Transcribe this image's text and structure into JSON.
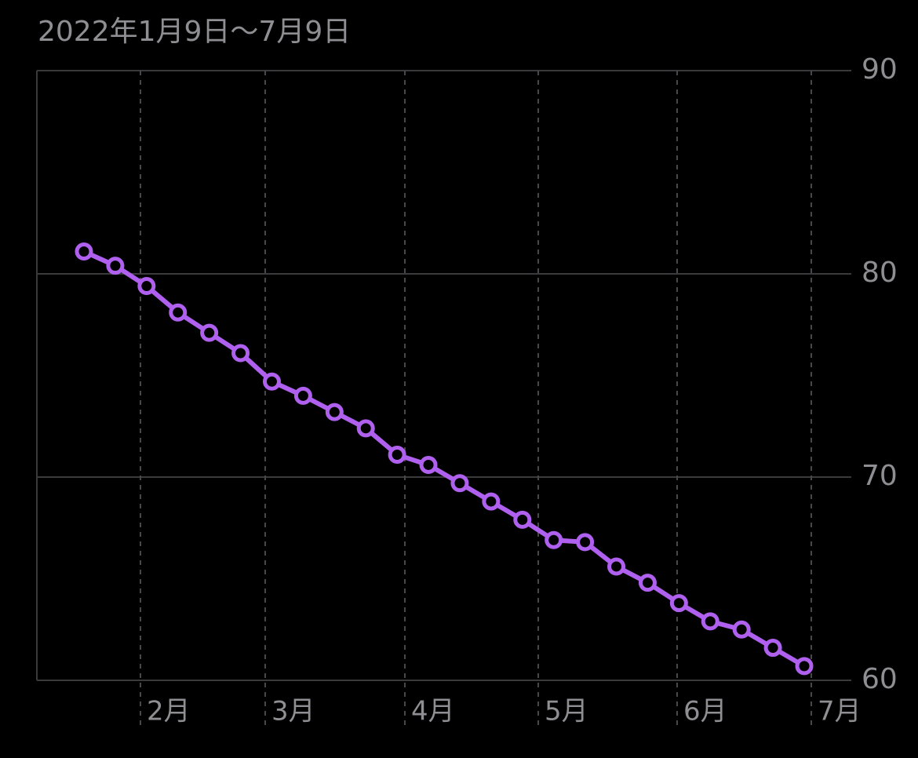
{
  "chart_data": {
    "type": "line",
    "title": "2022年1月9日～7月9日",
    "x_labels": [
      "2月",
      "3月",
      "4月",
      "5月",
      "6月",
      "7月"
    ],
    "series": [
      {
        "color": "#b060ee",
        "values": [
          81.1,
          80.4,
          79.4,
          78.1,
          77.1,
          76.1,
          74.7,
          74.0,
          73.2,
          72.4,
          71.1,
          70.6,
          69.7,
          68.8,
          67.9,
          66.9,
          66.8,
          65.6,
          64.8,
          63.8,
          62.9,
          62.5,
          61.6,
          60.7
        ]
      }
    ],
    "ylim": [
      60,
      90
    ],
    "yticks": [
      60,
      70,
      80,
      90
    ],
    "grid": true
  }
}
